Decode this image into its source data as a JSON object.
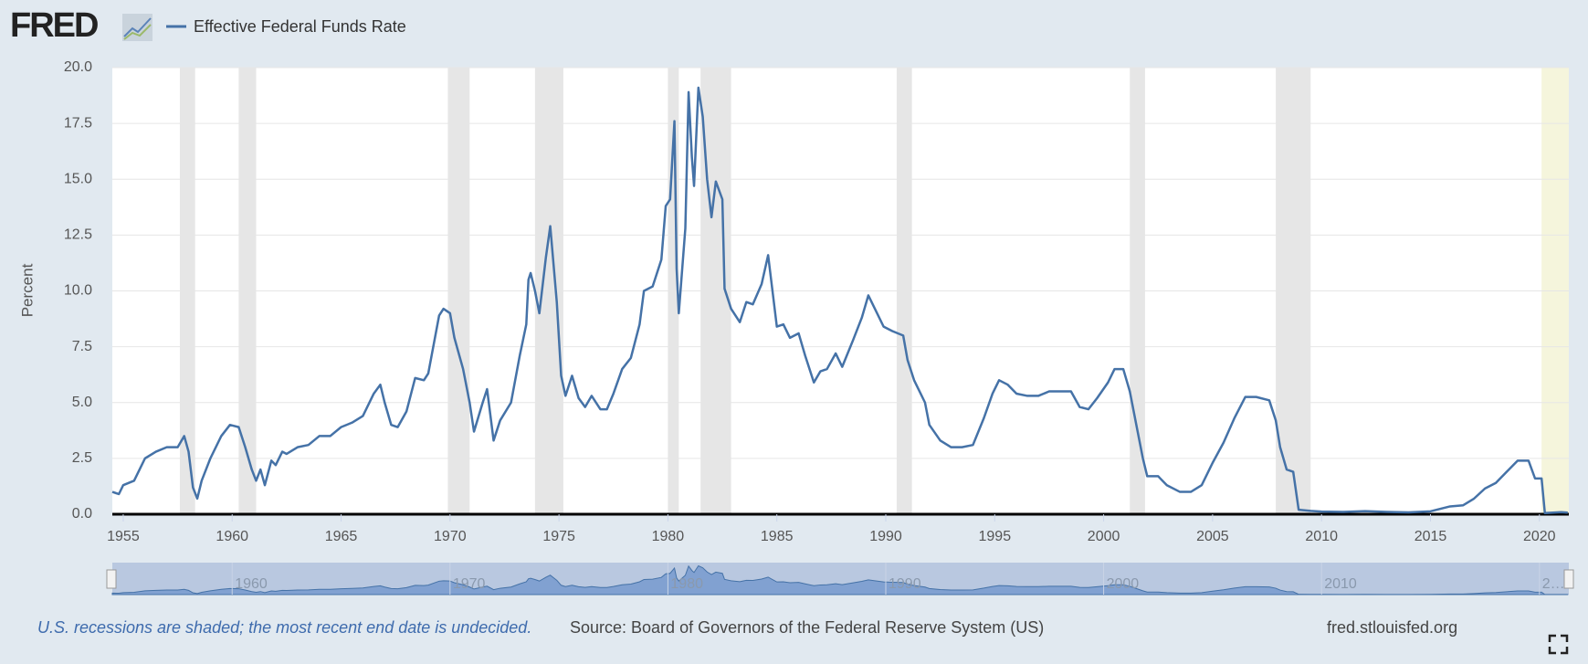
{
  "logo": "FRED",
  "chart_data": {
    "type": "line",
    "series": [
      {
        "name": "Effective Federal Funds Rate",
        "color": "#4572a7",
        "values": [
          1.0,
          0.9,
          1.3,
          1.5,
          2.5,
          2.8,
          3.0,
          3.0,
          3.5,
          2.8,
          1.2,
          0.7,
          1.5,
          2.5,
          3.5,
          4.0,
          3.9,
          3.0,
          2.0,
          1.5,
          2.0,
          1.3,
          2.4,
          2.2,
          2.8,
          2.7,
          3.0,
          3.1,
          3.5,
          3.5,
          3.9,
          4.1,
          4.4,
          5.4,
          5.8,
          5.0,
          4.0,
          3.9,
          4.6,
          6.1,
          6.0,
          6.3,
          8.9,
          9.2,
          9.0,
          7.9,
          6.5,
          5.0,
          3.7,
          5.0,
          5.6,
          3.3,
          4.2,
          5.0,
          7.1,
          8.5,
          10.5,
          10.8,
          10.0,
          9.0,
          11.5,
          12.9,
          9.5,
          6.2,
          5.3,
          6.2,
          5.2,
          4.8,
          5.3,
          4.7,
          4.7,
          5.4,
          6.5,
          7.0,
          8.5,
          10.0,
          10.2,
          11.4,
          13.8,
          14.1,
          17.6,
          11.0,
          9.0,
          12.8,
          18.9,
          16.0,
          14.7,
          19.1,
          17.8,
          15.0,
          13.3,
          14.9,
          14.1,
          10.1,
          9.2,
          8.6,
          9.5,
          9.4,
          10.3,
          11.6,
          10.0,
          8.4,
          8.5,
          7.9,
          8.1,
          7.1,
          5.9,
          6.4,
          6.5,
          7.2,
          6.6,
          7.8,
          8.8,
          9.8,
          9.2,
          8.4,
          8.2,
          8.0,
          6.9,
          6.0,
          5.0,
          4.0,
          3.3,
          3.0,
          3.0,
          3.1,
          4.3,
          5.4,
          6.0,
          5.8,
          5.4,
          5.3,
          5.3,
          5.5,
          5.5,
          5.5,
          4.8,
          4.7,
          5.2,
          5.9,
          6.5,
          6.5,
          5.5,
          4.0,
          2.5,
          1.7,
          1.7,
          1.3,
          1.0,
          1.0,
          1.3,
          2.3,
          3.2,
          4.3,
          5.25,
          5.25,
          5.1,
          4.2,
          3.0,
          2.0,
          1.9,
          0.2,
          0.15,
          0.12,
          0.1,
          0.14,
          0.1,
          0.08,
          0.13,
          0.35,
          0.4,
          0.7,
          1.15,
          1.4,
          1.9,
          2.4,
          2.4,
          1.6,
          1.6,
          0.05,
          0.09,
          0.07
        ]
      }
    ],
    "x": [
      1954.5,
      1954.8,
      1955.0,
      1955.5,
      1956.0,
      1956.5,
      1957.0,
      1957.5,
      1957.8,
      1958.0,
      1958.2,
      1958.4,
      1958.6,
      1959.0,
      1959.5,
      1959.9,
      1960.3,
      1960.6,
      1960.9,
      1961.1,
      1961.3,
      1961.5,
      1961.8,
      1962.0,
      1962.3,
      1962.5,
      1963.0,
      1963.5,
      1964.0,
      1964.5,
      1965.0,
      1965.5,
      1966.0,
      1966.5,
      1966.8,
      1967.0,
      1967.3,
      1967.6,
      1968.0,
      1968.4,
      1968.8,
      1969.0,
      1969.5,
      1969.7,
      1970.0,
      1970.2,
      1970.6,
      1970.9,
      1971.1,
      1971.5,
      1971.7,
      1972.0,
      1972.3,
      1972.8,
      1973.2,
      1973.5,
      1973.6,
      1973.7,
      1973.9,
      1974.1,
      1974.4,
      1974.6,
      1974.9,
      1975.1,
      1975.3,
      1975.6,
      1975.9,
      1976.2,
      1976.5,
      1976.9,
      1977.2,
      1977.5,
      1977.9,
      1978.3,
      1978.7,
      1978.9,
      1979.3,
      1979.7,
      1979.9,
      1980.1,
      1980.3,
      1980.4,
      1980.5,
      1980.8,
      1980.95,
      1981.1,
      1981.2,
      1981.4,
      1981.6,
      1981.8,
      1982.0,
      1982.2,
      1982.5,
      1982.6,
      1982.9,
      1983.3,
      1983.6,
      1983.9,
      1984.3,
      1984.6,
      1984.8,
      1985.0,
      1985.3,
      1985.6,
      1986.0,
      1986.3,
      1986.7,
      1987.0,
      1987.3,
      1987.7,
      1988.0,
      1988.5,
      1988.9,
      1989.2,
      1989.5,
      1989.9,
      1990.3,
      1990.8,
      1991.0,
      1991.3,
      1991.8,
      1992.0,
      1992.5,
      1993.0,
      1993.5,
      1994.0,
      1994.5,
      1994.9,
      1995.2,
      1995.6,
      1996.0,
      1996.5,
      1997.0,
      1997.5,
      1998.0,
      1998.5,
      1998.9,
      1999.3,
      1999.7,
      2000.2,
      2000.5,
      2000.9,
      2001.2,
      2001.5,
      2001.8,
      2002.0,
      2002.5,
      2002.9,
      2003.5,
      2004.0,
      2004.5,
      2005.0,
      2005.5,
      2006.0,
      2006.5,
      2007.0,
      2007.6,
      2007.9,
      2008.1,
      2008.4,
      2008.7,
      2008.95,
      2009.5,
      2010.0,
      2011.0,
      2012.0,
      2013.0,
      2014.0,
      2015.0,
      2015.9,
      2016.5,
      2017.0,
      2017.5,
      2018.0,
      2018.5,
      2019.0,
      2019.5,
      2019.8,
      2020.1,
      2020.25,
      2021.0,
      2021.3
    ],
    "y_label": "Percent",
    "xlim": [
      1954.5,
      2021.35
    ],
    "xticks": [
      1955,
      1960,
      1965,
      1970,
      1975,
      1980,
      1985,
      1990,
      1995,
      2000,
      2005,
      2010,
      2015,
      2020
    ],
    "ylim": [
      0,
      20
    ],
    "yticks": [
      {
        "value": 0,
        "label": "0.0"
      },
      2.5,
      {
        "value": 5,
        "label": "5.0"
      },
      7.5,
      {
        "value": 10,
        "label": "10.0"
      },
      12.5,
      {
        "value": 15,
        "label": "15.0"
      },
      17.5,
      {
        "value": 20,
        "label": "20.0"
      }
    ],
    "grid": true,
    "recessions": [
      [
        1957.6,
        1958.3
      ],
      [
        1960.3,
        1961.1
      ],
      [
        1969.9,
        1970.9
      ],
      [
        1973.9,
        1975.2
      ],
      [
        1980.0,
        1980.5
      ],
      [
        1981.5,
        1982.9
      ],
      [
        1990.5,
        1991.2
      ],
      [
        2001.2,
        2001.9
      ],
      [
        2007.9,
        2009.5
      ],
      [
        2020.1,
        2021.35
      ]
    ],
    "recession_color": "#e6e6e6",
    "open_recession_color": "#f5f5dc",
    "navigator_xticks": [
      1960,
      1970,
      1980,
      1990,
      2000,
      2010,
      {
        "value": 2020,
        "label": "2…"
      }
    ]
  },
  "footer": {
    "note": "U.S. recessions are shaded; the most recent end date is undecided.",
    "source": "Source: Board of Governors of the Federal Reserve System (US)",
    "website": "fred.stlouisfed.org"
  }
}
